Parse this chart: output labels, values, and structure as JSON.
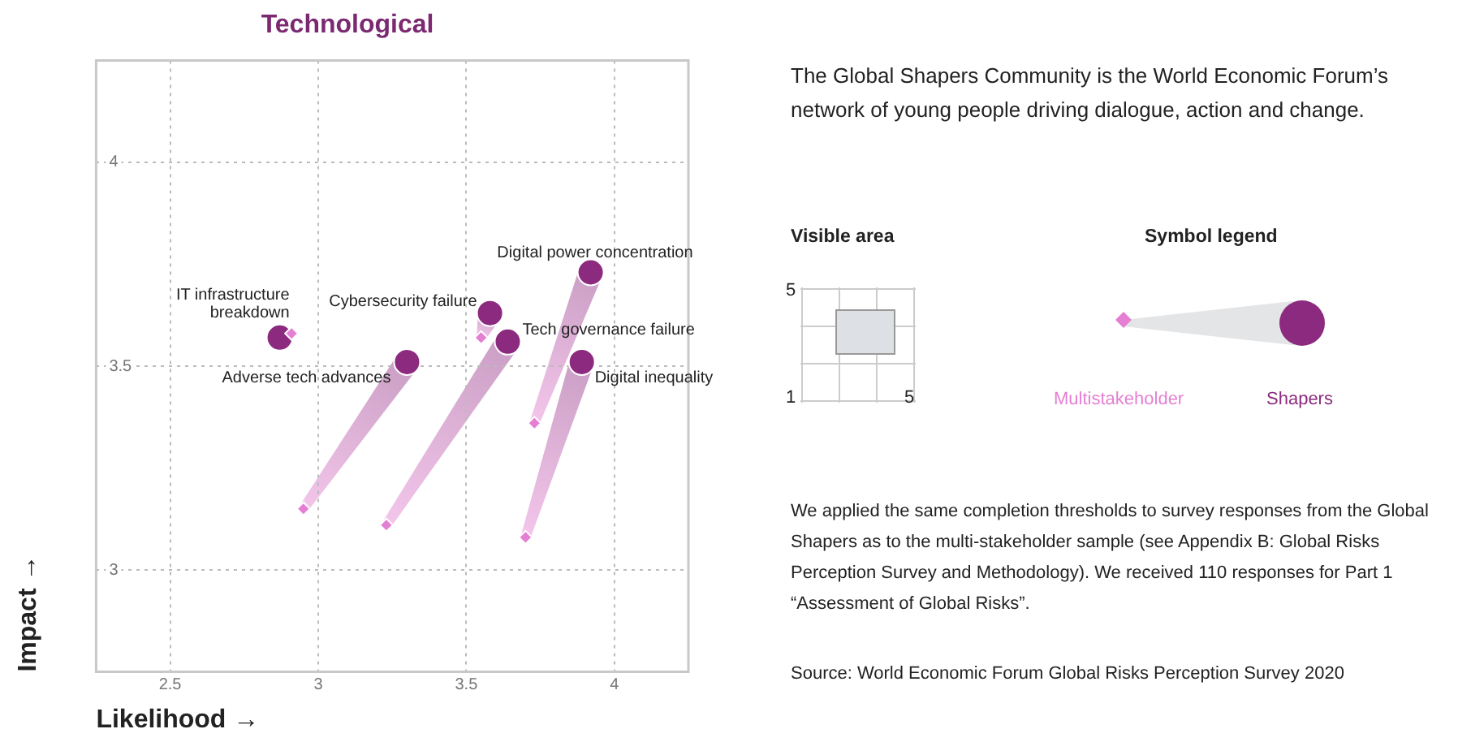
{
  "chart_data": {
    "type": "scatter",
    "title": "Technological",
    "xlabel": "Likelihood →",
    "ylabel": "Impact →",
    "xlim": [
      2.25,
      4.25
    ],
    "ylim": [
      2.75,
      4.25
    ],
    "xticks": [
      2.5,
      3,
      3.5,
      4
    ],
    "yticks": [
      3,
      3.5,
      4
    ],
    "grid": true,
    "legend": "right",
    "legend_title": "Symbol legend",
    "series": [
      {
        "name": "Multistakeholder",
        "color": "#e57fd3",
        "marker": "diamond",
        "x": [
          2.91,
          2.95,
          3.55,
          3.23,
          3.73,
          3.7
        ],
        "values": [
          3.58,
          3.15,
          3.57,
          3.11,
          3.36,
          3.08
        ]
      },
      {
        "name": "Shapers",
        "color": "#8b2a7e",
        "marker": "circle",
        "x": [
          2.87,
          3.3,
          3.58,
          3.64,
          3.92,
          3.89
        ],
        "values": [
          3.57,
          3.51,
          3.63,
          3.56,
          3.73,
          3.51
        ]
      }
    ],
    "annotations": [
      {
        "text": "IT infrastructure breakdown",
        "x": 2.87,
        "y": 3.57
      },
      {
        "text": "Adverse tech advances",
        "x": 3.3,
        "y": 3.51
      },
      {
        "text": "Cybersecurity failure",
        "x": 3.58,
        "y": 3.63
      },
      {
        "text": "Tech governance failure",
        "x": 3.64,
        "y": 3.56
      },
      {
        "text": "Digital power concentration",
        "x": 3.92,
        "y": 3.73
      },
      {
        "text": "Digital inequality",
        "x": 3.89,
        "y": 3.51
      },
      "The Global Shapers Community is the World Economic Forum’s network of young people driving dialogue, action and change.",
      "Visible area",
      "5",
      "1",
      "5",
      "We applied the same completion thresholds to survey responses from the Global Shapers as to the multi-stakeholder sample (see Appendix B: Global Risks Perception Survey and Methodology). We received 110 responses for Part 1 “Assessment of Global Risks”.",
      "Source: World Economic Forum Global Risks Perception Survey 2020"
    ]
  }
}
